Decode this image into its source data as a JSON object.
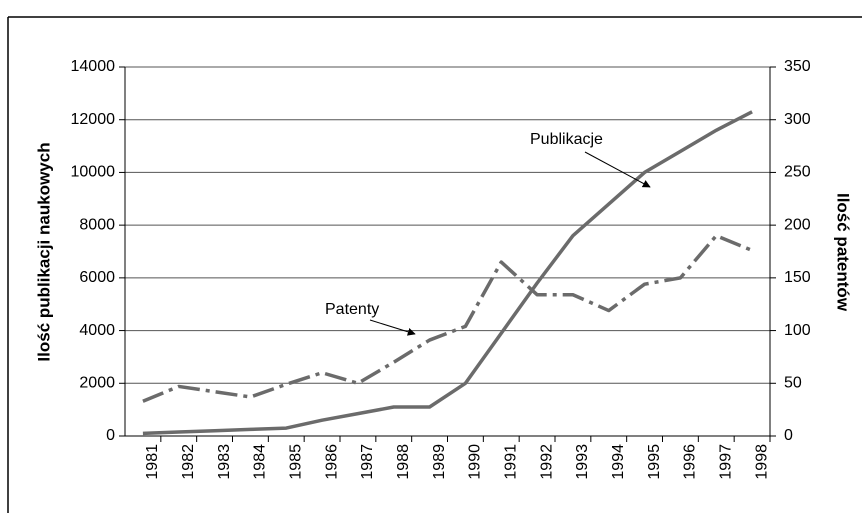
{
  "chart_data": {
    "type": "line",
    "categories": [
      "1981",
      "1982",
      "1983",
      "1984",
      "1985",
      "1986",
      "1987",
      "1988",
      "1989",
      "1990",
      "1991",
      "1992",
      "1993",
      "1994",
      "1995",
      "1996",
      "1997",
      "1998"
    ],
    "series": [
      {
        "name": "Publikacje",
        "color": "#6b6b6b",
        "values": [
          100,
          150,
          200,
          250,
          300,
          600,
          850,
          1100,
          1100,
          2000,
          3900,
          5800,
          7600,
          8800,
          10000,
          10800,
          11600,
          12300
        ]
      },
      {
        "name": "Patenty",
        "color": "#6b6b6b",
        "axis": "y2",
        "values": [
          33,
          47,
          42,
          37,
          49,
          60,
          50,
          70,
          91,
          104,
          165,
          134,
          134,
          119,
          144,
          150,
          190,
          176
        ]
      }
    ],
    "ylabel": "Ilość publikacji naukowych",
    "y2label": "Ilość patentów",
    "ylim": [
      0,
      14000
    ],
    "yticks": [
      0,
      2000,
      4000,
      6000,
      8000,
      10000,
      12000,
      14000
    ],
    "y2lim": [
      0,
      350
    ],
    "y2ticks": [
      0,
      50,
      100,
      150,
      200,
      250,
      300,
      350
    ],
    "grid": true
  }
}
